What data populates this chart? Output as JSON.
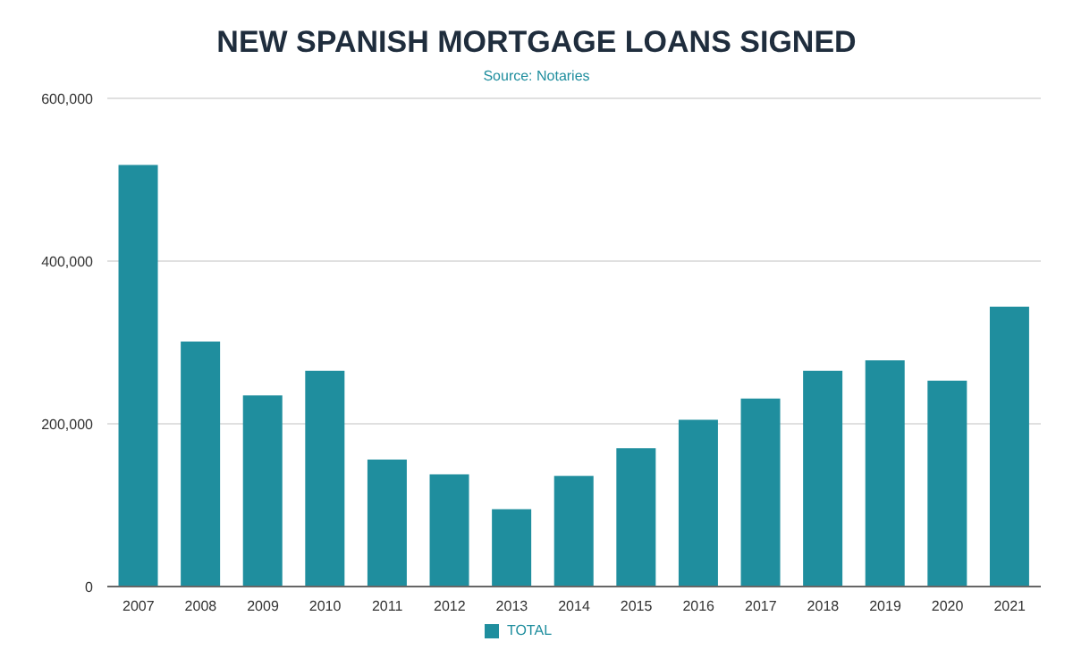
{
  "chart_data": {
    "type": "bar",
    "title": "NEW SPANISH MORTGAGE LOANS SIGNED",
    "subtitle": "Source: Notaries",
    "categories": [
      "2007",
      "2008",
      "2009",
      "2010",
      "2011",
      "2012",
      "2013",
      "2014",
      "2015",
      "2016",
      "2017",
      "2018",
      "2019",
      "2020",
      "2021"
    ],
    "series": [
      {
        "name": "TOTAL",
        "color": "#1f8e9e",
        "values": [
          518000,
          301000,
          235000,
          265000,
          156000,
          138000,
          95000,
          136000,
          170000,
          205000,
          231000,
          265000,
          278000,
          253000,
          344000
        ]
      }
    ],
    "ylim": [
      0,
      600000
    ],
    "yticks": [
      0,
      {
        "value": 200000,
        "label": "200,000"
      },
      {
        "value": 400000,
        "label": "400,000"
      },
      {
        "value": 600000,
        "label": "600,000"
      }
    ],
    "grid": "y",
    "legend": "bottom"
  }
}
